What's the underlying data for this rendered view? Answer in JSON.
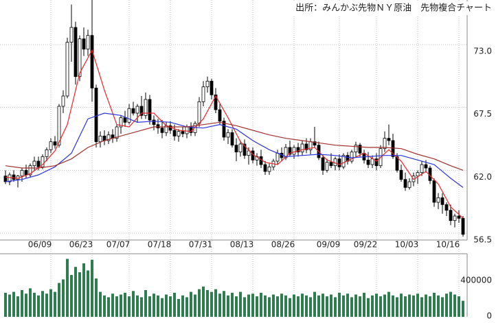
{
  "chart_data": [
    {
      "type": "candlestick",
      "title": "出所：みんかぶ先物ＮＹ原油　先物複合チャート",
      "categories": [
        null,
        null,
        null,
        null,
        null,
        null,
        null,
        null,
        null,
        null,
        null,
        "06/09",
        null,
        null,
        null,
        null,
        null,
        null,
        null,
        null,
        null,
        "06/23",
        null,
        null,
        null,
        null,
        null,
        null,
        null,
        null,
        "07/07",
        null,
        null,
        null,
        null,
        null,
        null,
        null,
        null,
        null,
        "07/18",
        null,
        null,
        null,
        null,
        null,
        null,
        null,
        null,
        null,
        "07/31",
        null,
        null,
        null,
        null,
        null,
        null,
        null,
        null,
        null,
        "08/13",
        null,
        null,
        null,
        null,
        null,
        null,
        null,
        null,
        null,
        "08/26",
        null,
        null,
        null,
        null,
        null,
        null,
        null,
        null,
        null,
        null,
        "09/09",
        null,
        null,
        null,
        null,
        null,
        null,
        null,
        null,
        "09/22",
        null,
        null,
        null,
        null,
        null,
        null,
        null,
        null,
        null,
        "10/03",
        null,
        null,
        null,
        null,
        null,
        null,
        null,
        null,
        null,
        "10/16",
        null
      ],
      "open": [
        61.5,
        61.0,
        61.6,
        61.2,
        61.5,
        62.0,
        61.6,
        62.4,
        62.8,
        62.3,
        63.2,
        63.8,
        64.5,
        64.2,
        67.6,
        68.5,
        73.2,
        74.5,
        70.2,
        73.5,
        72.6,
        73.8,
        69.2,
        64.5,
        65.0,
        64.6,
        65.1,
        64.8,
        65.8,
        66.6,
        66.2,
        67.4,
        67.0,
        67.6,
        66.8,
        68.2,
        66.4,
        66.0,
        65.7,
        65.3,
        65.9,
        65.5,
        65.0,
        65.4,
        65.2,
        65.8,
        65.3,
        66.1,
        68.0,
        69.3,
        69.8,
        68.6,
        67.3,
        66.3,
        64.9,
        65.3,
        64.2,
        63.6,
        64.3,
        63.3,
        63.7,
        62.9,
        63.2,
        62.5,
        61.9,
        62.3,
        62.8,
        63.5,
        63.1,
        64.0,
        63.4,
        64.0,
        63.6,
        64.3,
        63.8,
        64.5,
        64.2,
        63.1,
        62.0,
        62.7,
        62.4,
        63.0,
        62.3,
        63.3,
        62.8,
        63.6,
        64.2,
        63.5,
        62.9,
        62.5,
        63.0,
        62.4,
        63.9,
        64.8,
        64.6,
        63.2,
        62.0,
        61.2,
        60.5,
        61.0,
        61.5,
        61.8,
        62.5,
        62.2,
        61.1,
        59.2,
        59.6,
        59.0,
        58.5,
        57.6,
        58.0,
        57.8
      ],
      "high": [
        62.0,
        61.8,
        62.0,
        61.6,
        62.2,
        62.5,
        62.6,
        63.2,
        63.2,
        63.4,
        64.0,
        64.8,
        65.0,
        67.8,
        69.0,
        73.6,
        76.5,
        75.0,
        73.8,
        74.5,
        74.3,
        76.9,
        69.5,
        65.4,
        65.5,
        65.4,
        65.6,
        66.0,
        66.8,
        67.2,
        67.8,
        68.0,
        67.8,
        68.5,
        68.8,
        68.6,
        66.8,
        66.5,
        66.4,
        66.2,
        66.3,
        66.0,
        65.6,
        65.8,
        66.0,
        66.2,
        66.3,
        68.4,
        69.8,
        70.2,
        70.0,
        69.2,
        67.8,
        66.6,
        65.6,
        65.6,
        64.8,
        64.6,
        64.7,
        64.0,
        64.0,
        63.5,
        63.8,
        62.8,
        62.6,
        63.0,
        63.8,
        64.0,
        64.3,
        64.6,
        64.2,
        64.4,
        64.6,
        64.8,
        64.8,
        65.8,
        64.5,
        63.4,
        63.0,
        63.5,
        63.2,
        63.4,
        63.5,
        63.6,
        63.8,
        64.5,
        64.4,
        63.8,
        63.6,
        63.3,
        63.5,
        64.2,
        65.4,
        66.0,
        65.2,
        63.5,
        62.5,
        61.8,
        61.3,
        61.8,
        62.0,
        62.8,
        62.9,
        62.4,
        61.3,
        60.0,
        60.0,
        59.2,
        59.0,
        58.2,
        58.5,
        58.0
      ],
      "low": [
        60.8,
        60.7,
        61.0,
        60.5,
        61.0,
        61.3,
        61.4,
        62.0,
        62.0,
        62.1,
        62.8,
        63.5,
        63.9,
        64.0,
        67.0,
        68.3,
        71.5,
        69.5,
        69.8,
        72.0,
        72.0,
        68.0,
        64.0,
        64.0,
        64.2,
        64.3,
        64.4,
        64.5,
        65.2,
        65.8,
        66.0,
        66.8,
        66.2,
        66.5,
        66.5,
        66.0,
        65.5,
        65.2,
        64.8,
        65.0,
        65.2,
        64.6,
        64.5,
        64.9,
        64.8,
        65.0,
        65.0,
        65.8,
        67.6,
        68.8,
        68.2,
        67.0,
        66.0,
        64.6,
        64.3,
        64.0,
        62.8,
        63.2,
        63.0,
        62.5,
        62.6,
        62.4,
        62.2,
        61.6,
        61.6,
        62.0,
        62.5,
        62.8,
        62.9,
        63.2,
        63.0,
        63.2,
        63.3,
        63.5,
        63.4,
        64.0,
        62.9,
        61.6,
        61.8,
        62.2,
        62.0,
        62.0,
        62.1,
        62.5,
        62.6,
        63.2,
        63.2,
        62.6,
        62.2,
        62.2,
        62.0,
        62.2,
        63.6,
        64.2,
        63.0,
        61.8,
        61.0,
        60.2,
        60.3,
        60.6,
        60.8,
        61.5,
        61.8,
        60.8,
        58.8,
        58.6,
        58.2,
        58.0,
        57.2,
        57.0,
        57.4,
        56.2
      ],
      "close": [
        61.0,
        61.6,
        61.2,
        61.5,
        62.0,
        61.6,
        62.4,
        62.8,
        62.3,
        63.2,
        63.8,
        64.5,
        64.2,
        67.6,
        68.5,
        73.2,
        74.5,
        70.2,
        73.5,
        72.6,
        73.8,
        69.2,
        64.5,
        65.0,
        64.6,
        65.1,
        64.8,
        65.8,
        66.6,
        66.2,
        67.4,
        67.0,
        67.6,
        66.8,
        68.2,
        66.4,
        66.0,
        65.7,
        65.3,
        65.9,
        65.5,
        65.0,
        65.4,
        65.2,
        65.8,
        65.3,
        66.1,
        68.0,
        69.3,
        69.8,
        68.6,
        67.3,
        66.3,
        64.9,
        65.3,
        64.2,
        63.6,
        64.3,
        63.3,
        63.7,
        62.9,
        63.2,
        62.5,
        61.9,
        62.3,
        62.8,
        63.5,
        63.1,
        64.0,
        63.4,
        64.0,
        63.6,
        64.3,
        63.8,
        64.5,
        64.2,
        63.1,
        62.0,
        62.7,
        62.4,
        63.0,
        62.3,
        63.3,
        62.8,
        63.6,
        64.2,
        63.5,
        62.9,
        62.5,
        63.0,
        62.4,
        63.9,
        64.8,
        64.6,
        63.2,
        62.0,
        61.2,
        60.5,
        61.0,
        61.5,
        61.8,
        62.5,
        62.2,
        61.1,
        59.2,
        59.6,
        59.0,
        58.5,
        57.6,
        58.0,
        57.8,
        56.4
      ],
      "up_color": "#ffffff",
      "down_color": "#000000",
      "series": [
        {
          "color": "#e8262a",
          "x": [
            0,
            3,
            6,
            9,
            12,
            15,
            18,
            21,
            24,
            27,
            30,
            33,
            36,
            39,
            42,
            45,
            48,
            51,
            54,
            57,
            60,
            63,
            66,
            69,
            72,
            75,
            78,
            81,
            84,
            87,
            90,
            93,
            96,
            99,
            102,
            105,
            108,
            111
          ],
          "values": [
            61.4,
            61.3,
            61.7,
            62.5,
            63.7,
            66.0,
            70.5,
            72.5,
            69.0,
            66.0,
            65.8,
            67.0,
            67.0,
            65.9,
            65.5,
            65.4,
            66.5,
            68.5,
            66.6,
            64.5,
            63.4,
            62.7,
            62.5,
            63.5,
            63.8,
            64.0,
            62.9,
            62.5,
            63.0,
            63.5,
            62.8,
            63.8,
            62.8,
            61.2,
            61.9,
            60.8,
            58.8,
            57.8
          ]
        },
        {
          "color": "#2a33e0",
          "x": [
            0,
            4,
            8,
            12,
            16,
            20,
            24,
            28,
            32,
            36,
            40,
            44,
            48,
            52,
            56,
            60,
            64,
            68,
            72,
            76,
            80,
            84,
            88,
            92,
            96,
            100,
            104,
            108,
            111
          ],
          "values": [
            61.0,
            61.2,
            61.6,
            62.3,
            63.5,
            66.5,
            67.0,
            66.8,
            66.2,
            66.3,
            66.2,
            65.8,
            65.7,
            66.0,
            65.6,
            64.6,
            63.8,
            63.2,
            63.3,
            63.4,
            63.3,
            63.1,
            63.2,
            63.3,
            63.3,
            62.9,
            62.5,
            61.3,
            60.5
          ]
        },
        {
          "color": "#a0302a",
          "x": [
            0,
            4,
            8,
            12,
            16,
            20,
            24,
            28,
            32,
            36,
            40,
            44,
            48,
            52,
            56,
            60,
            64,
            68,
            72,
            76,
            80,
            84,
            88,
            92,
            96,
            100,
            104,
            108,
            111
          ],
          "values": [
            62.4,
            62.2,
            62.2,
            62.4,
            63.0,
            64.0,
            64.6,
            65.0,
            65.4,
            65.8,
            65.8,
            65.8,
            66.0,
            66.2,
            65.9,
            65.5,
            65.1,
            64.8,
            64.6,
            64.4,
            64.2,
            64.1,
            64.0,
            64.0,
            63.9,
            63.4,
            63.0,
            62.4,
            62.0
          ]
        }
      ],
      "ylim": [
        55.9,
        76.9
      ],
      "yticks": [
        {
          "value": 73,
          "label": "73.0"
        },
        67.5,
        {
          "value": 62,
          "label": "62.0"
        },
        56.5
      ],
      "grid": true
    },
    {
      "type": "bar",
      "color": "#2e7d4f",
      "values": [
        270000,
        250000,
        280000,
        230000,
        300000,
        260000,
        320000,
        270000,
        240000,
        290000,
        260000,
        310000,
        280000,
        380000,
        420000,
        650000,
        470000,
        560000,
        500000,
        600000,
        520000,
        640000,
        430000,
        280000,
        240000,
        220000,
        260000,
        230000,
        250000,
        270000,
        230000,
        290000,
        240000,
        220000,
        300000,
        230000,
        260000,
        240000,
        210000,
        250000,
        230000,
        270000,
        200000,
        240000,
        220000,
        280000,
        250000,
        310000,
        340000,
        300000,
        280000,
        310000,
        260000,
        290000,
        240000,
        270000,
        230000,
        280000,
        220000,
        250000,
        260000,
        230000,
        270000,
        240000,
        220000,
        250000,
        230000,
        260000,
        240000,
        210000,
        250000,
        230000,
        260000,
        240000,
        220000,
        280000,
        240000,
        260000,
        230000,
        250000,
        220000,
        270000,
        240000,
        260000,
        220000,
        250000,
        230000,
        270000,
        210000,
        240000,
        260000,
        230000,
        250000,
        280000,
        240000,
        220000,
        260000,
        230000,
        250000,
        240000,
        260000,
        220000,
        250000,
        230000,
        270000,
        240000,
        220000,
        260000,
        280000,
        250000,
        230000,
        180000
      ],
      "ylim": [
        0,
        700000
      ],
      "yticks": [
        400000,
        0
      ]
    }
  ]
}
